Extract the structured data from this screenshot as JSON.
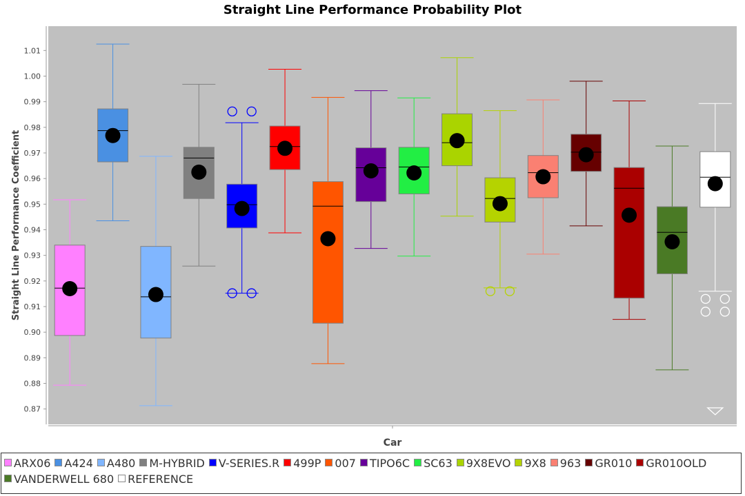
{
  "chart_data": {
    "type": "box",
    "title": "Straight Line Performance Probability Plot",
    "xlabel": "Car",
    "ylabel": "Straight Line Performance Coefficient",
    "ylim": [
      0.864,
      1.0195
    ],
    "yticks": [
      "0.87",
      "0.88",
      "0.89",
      "0.90",
      "0.91",
      "0.92",
      "0.93",
      "0.94",
      "0.95",
      "0.96",
      "0.97",
      "0.98",
      "0.99",
      "1.00",
      "1.01"
    ],
    "grid": false,
    "legend_position": "bottom",
    "series": [
      {
        "name": "ARX06",
        "color": "#ff80ff",
        "whisker_low": 0.8793,
        "q1": 0.8987,
        "median": 0.9172,
        "q3": 0.934,
        "whisker_high": 0.9517,
        "mean": 0.917,
        "outliers": []
      },
      {
        "name": "A424",
        "color": "#4a90e2",
        "whisker_low": 0.9435,
        "q1": 0.9665,
        "median": 0.9787,
        "q3": 0.9872,
        "whisker_high": 1.0125,
        "mean": 0.9768,
        "outliers": []
      },
      {
        "name": "A480",
        "color": "#80b6ff",
        "whisker_low": 0.8713,
        "q1": 0.8977,
        "median": 0.9138,
        "q3": 0.9335,
        "whisker_high": 0.9687,
        "mean": 0.9147,
        "outliers": []
      },
      {
        "name": "M-HYBRID",
        "color": "#808080",
        "whisker_low": 0.9258,
        "q1": 0.9522,
        "median": 0.968,
        "q3": 0.9722,
        "whisker_high": 0.9968,
        "mean": 0.9625,
        "outliers": []
      },
      {
        "name": "V-SERIES.R",
        "color": "#0000ff",
        "whisker_low": 0.9152,
        "q1": 0.9407,
        "median": 0.9498,
        "q3": 0.9578,
        "whisker_high": 0.9818,
        "mean": 0.9483,
        "outliers": [
          0.9862,
          0.9862,
          0.9152,
          0.9152
        ]
      },
      {
        "name": "499P",
        "color": "#ff0000",
        "whisker_low": 0.9388,
        "q1": 0.9635,
        "median": 0.9725,
        "q3": 0.9805,
        "whisker_high": 1.0027,
        "mean": 0.9718,
        "outliers": []
      },
      {
        "name": "007",
        "color": "#ff5500",
        "whisker_low": 0.8877,
        "q1": 0.9035,
        "median": 0.9492,
        "q3": 0.9588,
        "whisker_high": 0.9917,
        "mean": 0.9365,
        "outliers": []
      },
      {
        "name": "TIPO6C",
        "color": "#660099",
        "whisker_low": 0.9327,
        "q1": 0.951,
        "median": 0.9642,
        "q3": 0.972,
        "whisker_high": 0.9943,
        "mean": 0.963,
        "outliers": []
      },
      {
        "name": "SC63",
        "color": "#22ee44",
        "whisker_low": 0.9297,
        "q1": 0.954,
        "median": 0.9645,
        "q3": 0.9722,
        "whisker_high": 0.9915,
        "mean": 0.9622,
        "outliers": []
      },
      {
        "name": "9X8EVO",
        "color": "#aad400",
        "whisker_low": 0.9453,
        "q1": 0.965,
        "median": 0.974,
        "q3": 0.9853,
        "whisker_high": 1.0072,
        "mean": 0.9748,
        "outliers": []
      },
      {
        "name": "9X8",
        "color": "#b5d300",
        "whisker_low": 0.9173,
        "q1": 0.943,
        "median": 0.9522,
        "q3": 0.9603,
        "whisker_high": 0.9865,
        "mean": 0.9502,
        "outliers": [
          0.916,
          0.916
        ]
      },
      {
        "name": "963",
        "color": "#fa8072",
        "whisker_low": 0.9305,
        "q1": 0.9525,
        "median": 0.9623,
        "q3": 0.969,
        "whisker_high": 0.9907,
        "mean": 0.9607,
        "outliers": []
      },
      {
        "name": "GR010",
        "color": "#660000",
        "whisker_low": 0.9415,
        "q1": 0.9628,
        "median": 0.9703,
        "q3": 0.9773,
        "whisker_high": 0.998,
        "mean": 0.9693,
        "outliers": []
      },
      {
        "name": "GR010OLD",
        "color": "#aa0000",
        "whisker_low": 0.905,
        "q1": 0.9133,
        "median": 0.9562,
        "q3": 0.9643,
        "whisker_high": 0.9903,
        "mean": 0.9457,
        "outliers": []
      },
      {
        "name": "VANDERWELL 680",
        "color": "#4a7a25",
        "whisker_low": 0.8853,
        "q1": 0.9228,
        "median": 0.939,
        "q3": 0.949,
        "whisker_high": 0.9727,
        "mean": 0.9353,
        "outliers": []
      },
      {
        "name": "REFERENCE",
        "color": "#ffffff",
        "whisker_low": 0.916,
        "q1": 0.9488,
        "median": 0.9605,
        "q3": 0.9705,
        "whisker_high": 0.9893,
        "mean": 0.958,
        "outliers": [
          0.913,
          0.913,
          0.908,
          0.908
        ],
        "below_range_marker": true
      }
    ]
  }
}
